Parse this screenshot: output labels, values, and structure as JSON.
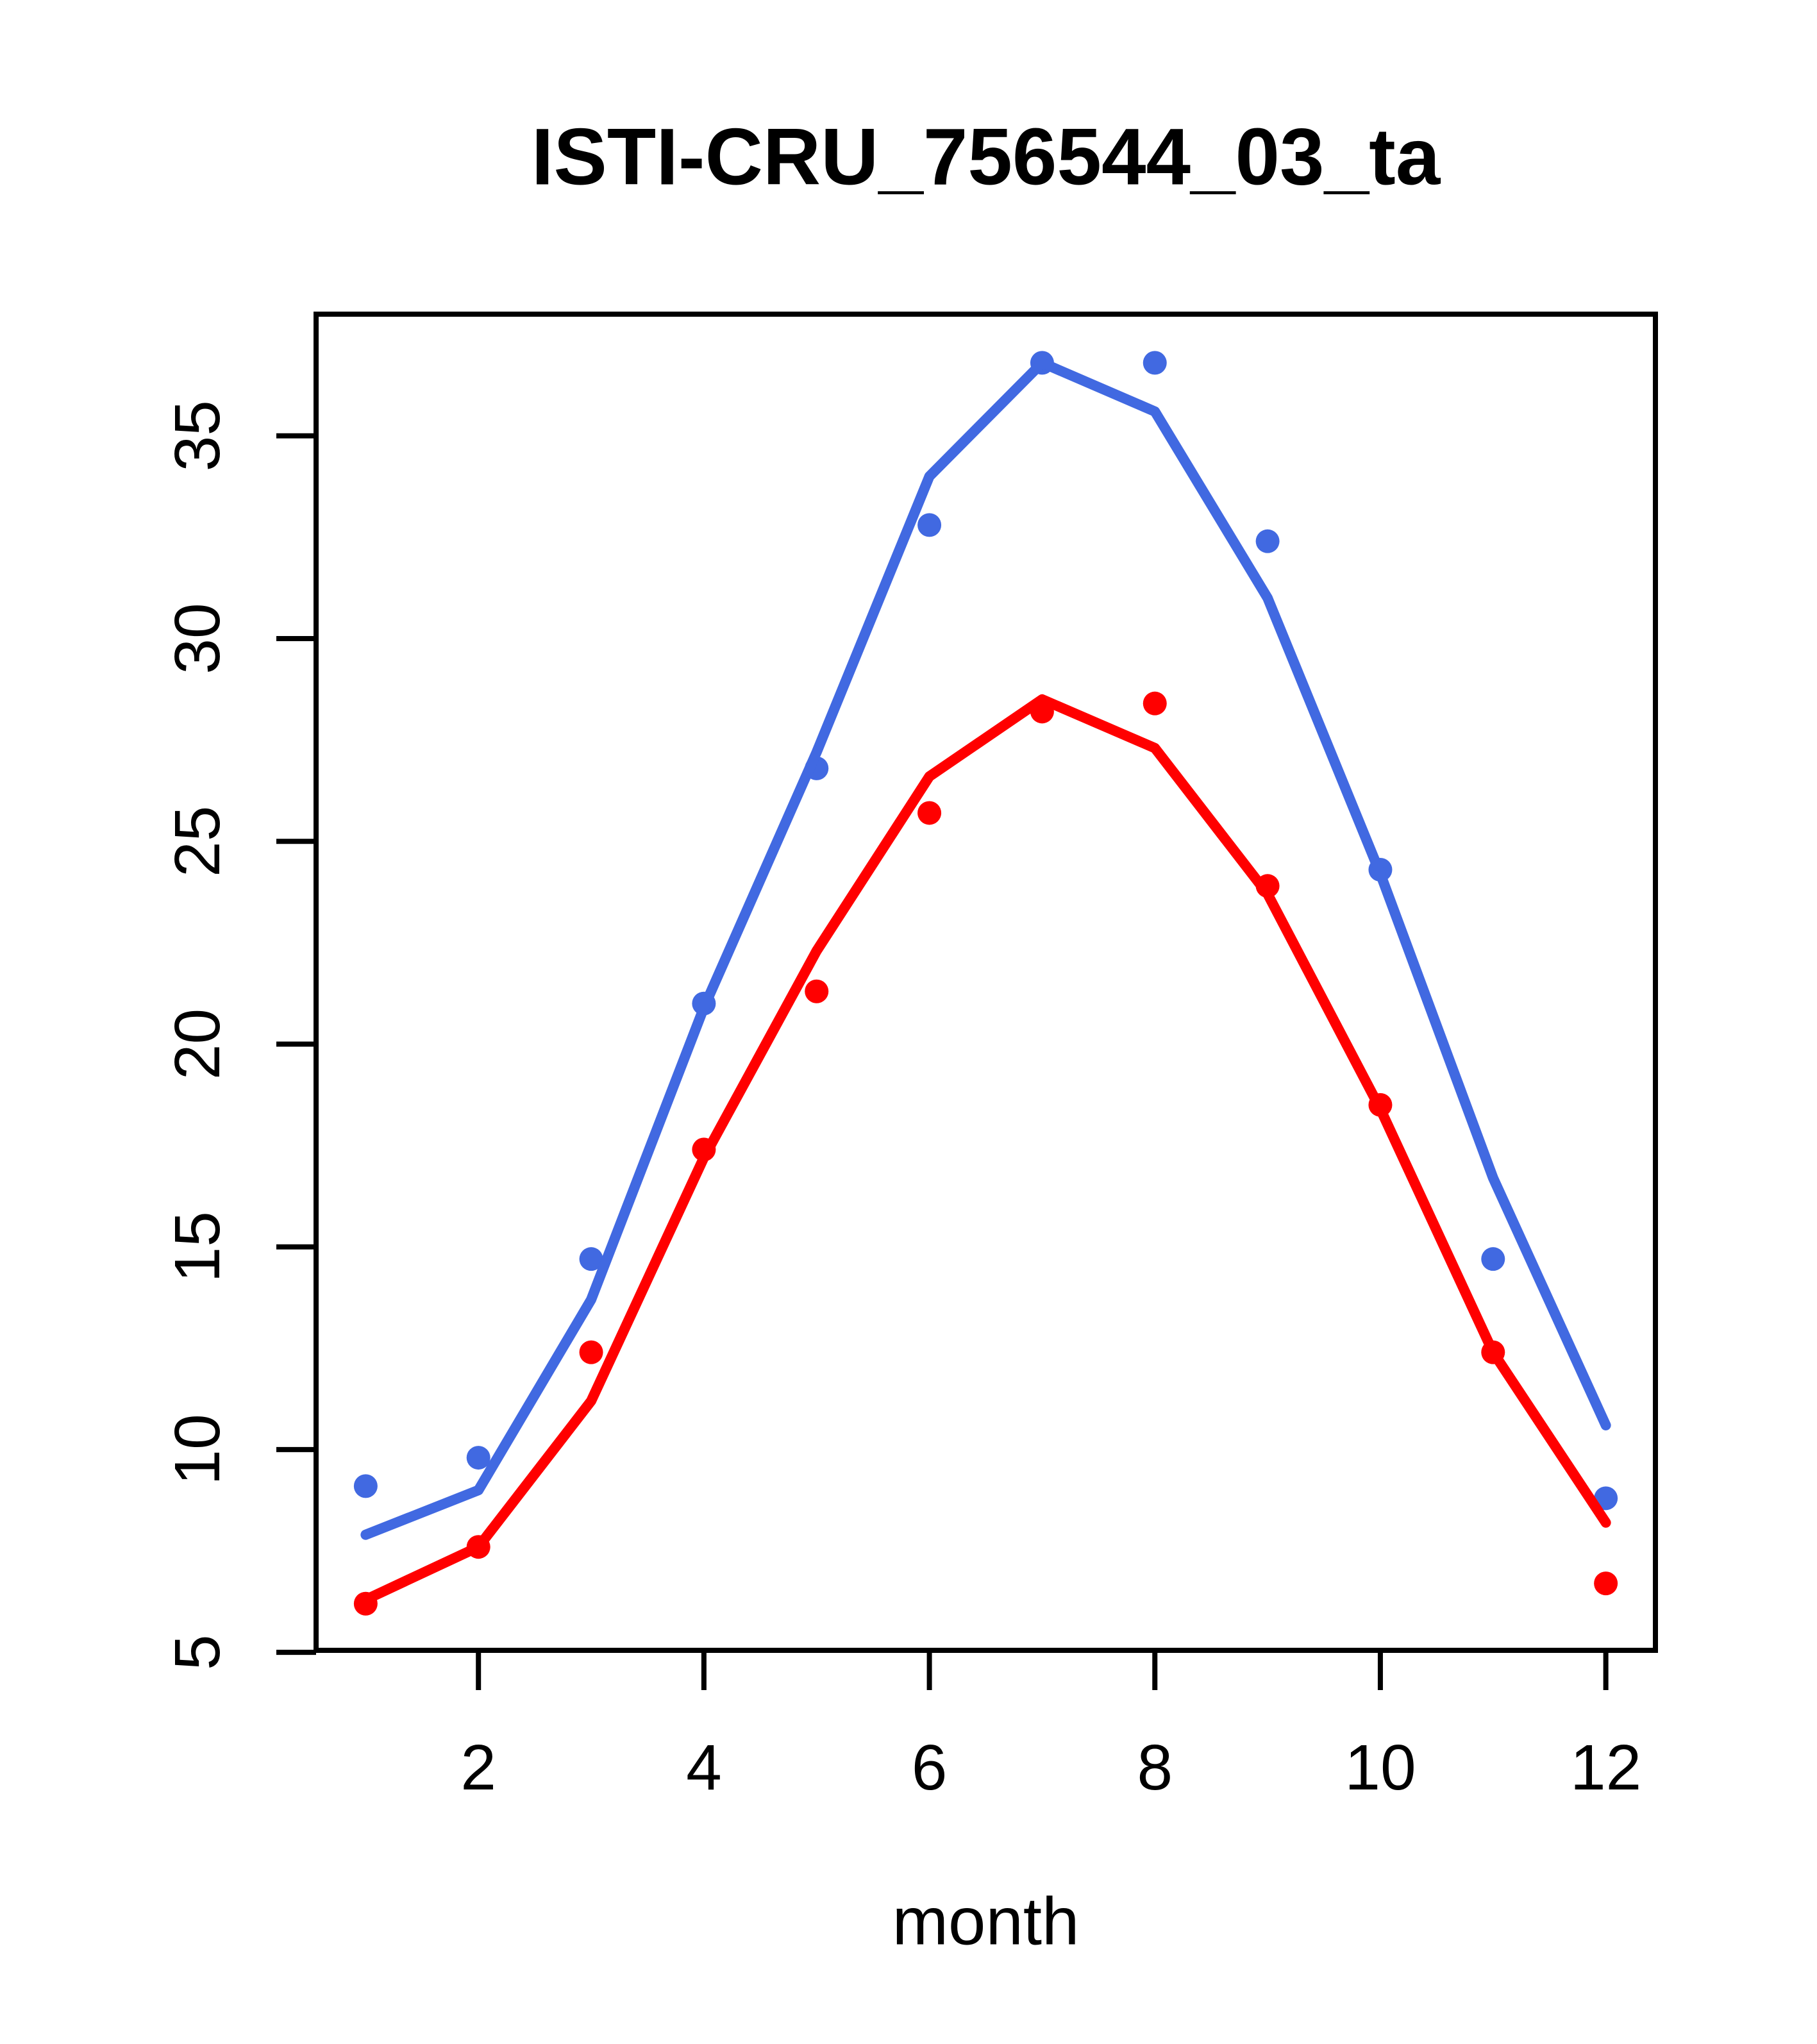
{
  "figure": {
    "background": "#ffffff",
    "text_color": "#000000",
    "frame_color": "#000000"
  },
  "chart_data": {
    "type": "line",
    "title": "ISTI-CRU_756544_03_ta",
    "xlabel": "month",
    "ylabel": "",
    "grid": false,
    "legend_position": "none",
    "x": [
      1,
      2,
      3,
      4,
      5,
      6,
      7,
      8,
      9,
      10,
      11,
      12
    ],
    "xticks": [
      2,
      4,
      6,
      8,
      10,
      12
    ],
    "yticks": [
      5,
      10,
      15,
      20,
      25,
      30,
      35
    ],
    "xlim": [
      0.56,
      12.44
    ],
    "ylim": [
      5.05,
      38.0
    ],
    "series": [
      {
        "name": "blue-points",
        "style": "points",
        "color": "#4169e1",
        "values": [
          9.1,
          9.8,
          14.7,
          21.0,
          26.8,
          32.8,
          36.8,
          36.8,
          32.4,
          24.3,
          14.7,
          8.8
        ]
      },
      {
        "name": "red-points",
        "style": "points",
        "color": "#ff0000",
        "values": [
          6.2,
          7.6,
          12.4,
          17.4,
          21.3,
          25.7,
          28.2,
          28.4,
          23.9,
          18.5,
          12.4,
          6.7
        ]
      },
      {
        "name": "blue-line",
        "style": "line",
        "color": "#4169e1",
        "values": [
          7.9,
          9.0,
          13.7,
          20.9,
          27.2,
          34.0,
          36.8,
          35.6,
          31.0,
          24.2,
          16.7,
          10.6
        ]
      },
      {
        "name": "red-line",
        "style": "line",
        "color": "#ff0000",
        "values": [
          6.3,
          7.6,
          11.2,
          17.2,
          22.3,
          26.6,
          28.5,
          27.3,
          23.7,
          18.4,
          12.4,
          8.2
        ]
      }
    ]
  }
}
